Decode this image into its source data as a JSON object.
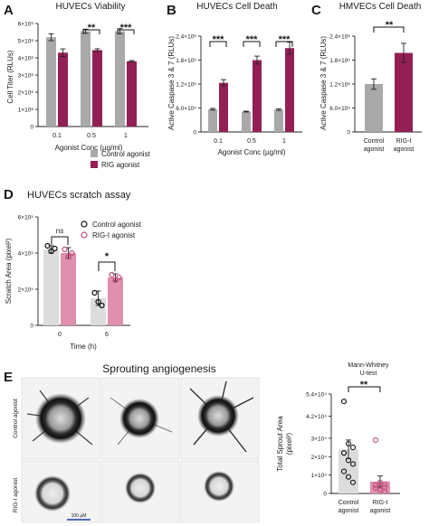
{
  "colors": {
    "control": "#a9a9a9",
    "rig": "#941f55",
    "control_light": "#dcdcdc",
    "rig_light": "#e08fae"
  },
  "panels": {
    "A": {
      "letter": "A",
      "title": "HUVECs Viability",
      "ylabel": "Cell Titer (RLUs)",
      "xlabel": "Agonist Conc (µg/ml)",
      "yticks": [
        "0",
        "1×10⁶",
        "2×10⁶",
        "3×10⁶",
        "4×10⁶",
        "5×10⁶",
        "6×10⁶"
      ],
      "xticks": [
        "0.1",
        "0.5",
        "1"
      ],
      "sig": [
        "**",
        "***"
      ]
    },
    "B": {
      "letter": "B",
      "title": "HUVECs Cell Death",
      "ylabel": "Active Caspase 3 & 7 (RLUs)",
      "xlabel": "Agonist Conc (µg/ml)",
      "yticks": [
        "0",
        "6.0×10⁵",
        "1.2×10⁶",
        "1.8×10⁶",
        "2.4×10⁶"
      ],
      "xticks": [
        "0.1",
        "0.5",
        "1"
      ],
      "sig": [
        "***",
        "***",
        "***"
      ]
    },
    "C": {
      "letter": "C",
      "title": "HMVECs Cell Death",
      "ylabel": "Active Caspase 3 & 7 (RLUs)",
      "yticks": [
        "0",
        "6.0×10⁵",
        "1.2×10⁶",
        "1.8×10⁶",
        "2.4×10⁶"
      ],
      "xticks": [
        [
          "Control",
          "agonist"
        ],
        [
          "RIG-I",
          "agonist"
        ]
      ],
      "sig": "**"
    },
    "D": {
      "letter": "D",
      "title": "HUVECs scratch assay",
      "ylabel": "Scratch Area (pixel²)",
      "xlabel": "Time (h)",
      "yticks": [
        "0",
        "2×10⁵",
        "4×10⁵",
        "6×10⁵"
      ],
      "xticks": [
        "0",
        "6"
      ],
      "legend": [
        "Control agonist",
        "RIG-I agonist"
      ],
      "sig": [
        "ns",
        "*"
      ]
    },
    "E": {
      "letter": "E",
      "title": "Sprouting angiogenesis",
      "row_labels": [
        "Control agonist",
        "RIG-I agonist"
      ],
      "scale_label": "100 µM",
      "test_label": [
        "Mann-Whitney",
        "U-test"
      ],
      "ylabel": [
        "Total Sprout Area",
        "(pixel²)"
      ],
      "yticks": [
        "0",
        "1×10⁴",
        "2×10⁴",
        "3×10⁴",
        "4.2×10⁴",
        "5.4×10⁴"
      ],
      "xticks": [
        [
          "Control",
          "agonist"
        ],
        [
          "RIG-I",
          "agonist"
        ]
      ],
      "sig": "**"
    }
  },
  "legend_AB": [
    "Control agonist",
    "RIG agonist"
  ],
  "chart_data": [
    {
      "panel": "A",
      "type": "bar",
      "title": "HUVECs Viability",
      "xlabel": "Agonist Conc (µg/ml)",
      "ylabel": "Cell Titer (RLUs)",
      "categories": [
        "0.1",
        "0.5",
        "1"
      ],
      "ylim": [
        0,
        6000000
      ],
      "series": [
        {
          "name": "Control agonist",
          "values": [
            5200000,
            5550000,
            5550000
          ],
          "errors": [
            200000,
            120000,
            150000
          ]
        },
        {
          "name": "RIG agonist",
          "values": [
            4300000,
            4450000,
            3800000
          ],
          "errors": [
            220000,
            80000,
            40000
          ]
        }
      ],
      "annotations": [
        "**",
        "***"
      ]
    },
    {
      "panel": "B",
      "type": "bar",
      "title": "HUVECs Cell Death",
      "xlabel": "Agonist Conc (µg/ml)",
      "ylabel": "Active Caspase 3 & 7 (RLUs)",
      "categories": [
        "0.1",
        "0.5",
        "1"
      ],
      "ylim": [
        0,
        2400000
      ],
      "series": [
        {
          "name": "Control agonist",
          "values": [
            570000,
            510000,
            560000
          ],
          "errors": [
            20000,
            10000,
            20000
          ]
        },
        {
          "name": "RIG agonist",
          "values": [
            1230000,
            1800000,
            2100000
          ],
          "errors": [
            80000,
            100000,
            150000
          ]
        }
      ],
      "annotations": [
        "***",
        "***",
        "***"
      ]
    },
    {
      "panel": "C",
      "type": "bar",
      "title": "HMVECs Cell Death",
      "ylabel": "Active Caspase 3 & 7 (RLUs)",
      "categories": [
        "Control agonist",
        "RIG-I agonist"
      ],
      "ylim": [
        0,
        2400000
      ],
      "values": [
        1200000,
        1980000
      ],
      "errors": [
        130000,
        240000
      ],
      "annotations": [
        "**"
      ]
    },
    {
      "panel": "D",
      "type": "bar",
      "title": "HUVECs scratch assay",
      "xlabel": "Time (h)",
      "ylabel": "Scratch Area (pixel²)",
      "categories": [
        "0",
        "6"
      ],
      "ylim": [
        0,
        600000
      ],
      "series": [
        {
          "name": "Control agonist",
          "values": [
            420000,
            150000
          ],
          "errors": [
            20000,
            40000
          ],
          "points": [
            [
              440000,
              410000,
              425000
            ],
            [
              180000,
              130000,
              110000
            ]
          ]
        },
        {
          "name": "RIG-I agonist",
          "values": [
            400000,
            265000
          ],
          "errors": [
            30000,
            20000
          ],
          "points": [
            [
              420000,
              380000,
              400000
            ],
            [
              280000,
              250000,
              265000
            ]
          ]
        }
      ],
      "annotations": [
        "ns",
        "*"
      ]
    },
    {
      "panel": "E",
      "type": "bar",
      "ylabel": "Total Sprout Area (pixel²)",
      "categories": [
        "Control agonist",
        "RIG-I agonist"
      ],
      "ylim": [
        0,
        54000
      ],
      "values": [
        24000,
        6500
      ],
      "errors": [
        5000,
        3000
      ],
      "points": [
        [
          50000,
          27000,
          25000,
          22000,
          18000,
          16000,
          12000,
          9000,
          6000
        ],
        [
          29000,
          6000,
          5000,
          4500,
          4000,
          3500,
          3000,
          2000,
          1000
        ]
      ],
      "annotations": [
        "**"
      ]
    }
  ]
}
